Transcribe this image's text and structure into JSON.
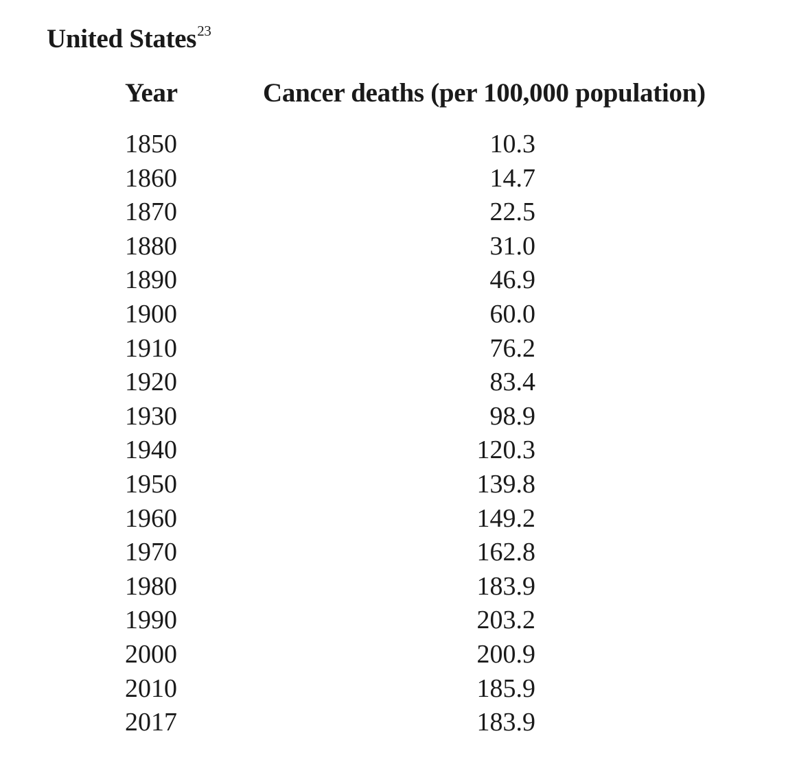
{
  "table": {
    "title": "United States",
    "footnote_ref": "23",
    "headers": {
      "year": "Year",
      "deaths": "Cancer deaths (per 100,000 population)"
    },
    "rows": [
      {
        "year": "1850",
        "deaths": "10.3"
      },
      {
        "year": "1860",
        "deaths": "14.7"
      },
      {
        "year": "1870",
        "deaths": "22.5"
      },
      {
        "year": "1880",
        "deaths": "31.0"
      },
      {
        "year": "1890",
        "deaths": "46.9"
      },
      {
        "year": "1900",
        "deaths": "60.0"
      },
      {
        "year": "1910",
        "deaths": "76.2"
      },
      {
        "year": "1920",
        "deaths": "83.4"
      },
      {
        "year": "1930",
        "deaths": "98.9"
      },
      {
        "year": "1940",
        "deaths": "120.3"
      },
      {
        "year": "1950",
        "deaths": "139.8"
      },
      {
        "year": "1960",
        "deaths": "149.2"
      },
      {
        "year": "1970",
        "deaths": "162.8"
      },
      {
        "year": "1980",
        "deaths": "183.9"
      },
      {
        "year": "1990",
        "deaths": "203.2"
      },
      {
        "year": "2000",
        "deaths": "200.9"
      },
      {
        "year": "2010",
        "deaths": "185.9"
      },
      {
        "year": "2017",
        "deaths": "183.9"
      }
    ]
  }
}
